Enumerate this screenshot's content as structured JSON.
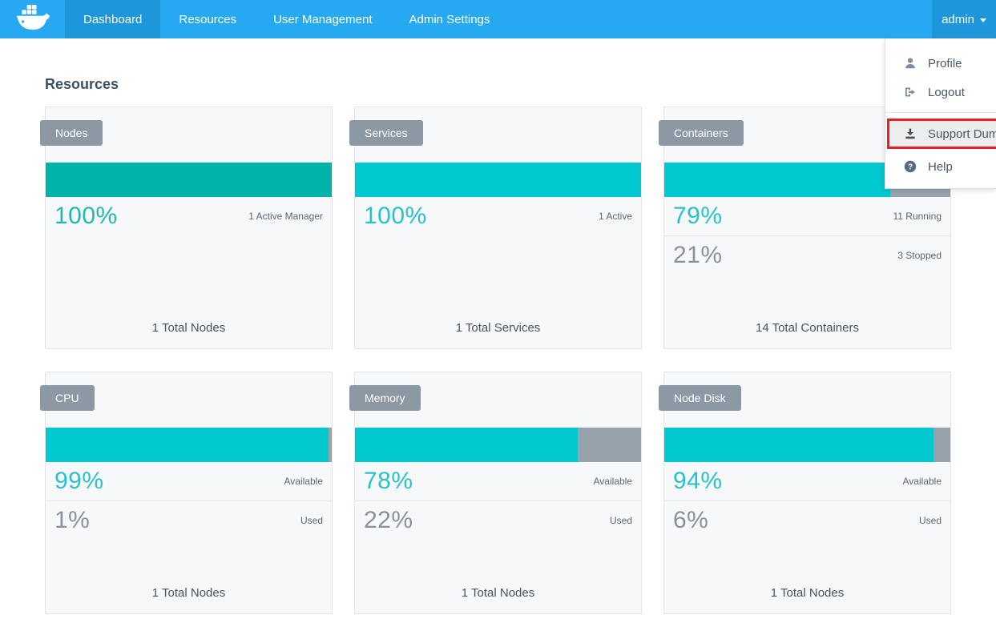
{
  "navbar": {
    "items": [
      {
        "label": "Dashboard",
        "active": true
      },
      {
        "label": "Resources",
        "active": false
      },
      {
        "label": "User Management",
        "active": false
      },
      {
        "label": "Admin Settings",
        "active": false
      }
    ],
    "user_label": "admin"
  },
  "user_menu": {
    "profile_label": "Profile",
    "logout_label": "Logout",
    "support_dump_label": "Support Dump",
    "help_label": "Help",
    "highlighted_item": "Support Dump"
  },
  "page": {
    "title": "Resources"
  },
  "cards": [
    {
      "title": "Nodes",
      "bar_fill": 100,
      "stats": [
        {
          "value": "100%",
          "label": "1 Active Manager"
        }
      ],
      "footer": "1 Total Nodes"
    },
    {
      "title": "Services",
      "bar_fill": 100,
      "stats": [
        {
          "value": "100%",
          "label": "1 Active"
        }
      ],
      "footer": "1 Total Services"
    },
    {
      "title": "Containers",
      "bar_fill": 79,
      "stats": [
        {
          "value": "79%",
          "label": "11 Running"
        },
        {
          "value": "21%",
          "label": "3 Stopped"
        }
      ],
      "footer": "14 Total Containers"
    },
    {
      "title": "CPU",
      "bar_fill": 99,
      "stats": [
        {
          "value": "99%",
          "label": "Available"
        },
        {
          "value": "1%",
          "label": "Used"
        }
      ],
      "footer": "1 Total Nodes"
    },
    {
      "title": "Memory",
      "bar_fill": 78,
      "stats": [
        {
          "value": "78%",
          "label": "Available"
        },
        {
          "value": "22%",
          "label": "Used"
        }
      ],
      "footer": "1 Total Nodes"
    },
    {
      "title": "Node Disk",
      "bar_fill": 94,
      "stats": [
        {
          "value": "94%",
          "label": "Available"
        },
        {
          "value": "6%",
          "label": "Used"
        }
      ],
      "footer": "1 Total Nodes"
    }
  ],
  "colors": {
    "navbar_blue": "#27A9F1",
    "navbar_active_blue": "#1E96DC",
    "teal_bar": "#00B3A9",
    "cyan_bar": "#00C8CF",
    "badge_gray": "#8C98A4",
    "bar_track_gray": "#98A2AD",
    "highlight_red": "#EE1C25"
  }
}
